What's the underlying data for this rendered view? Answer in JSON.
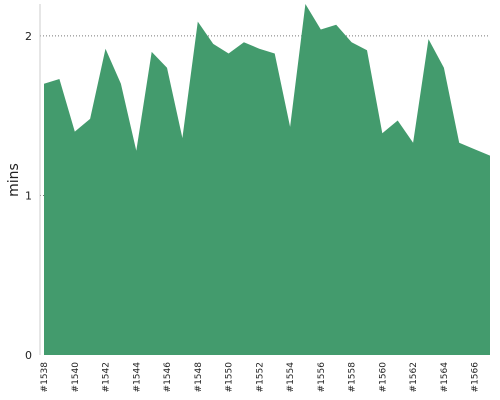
{
  "chart_data": {
    "type": "area",
    "title": "",
    "xlabel": "",
    "ylabel": "mins",
    "ylim": [
      0,
      2.2
    ],
    "yticks": [
      0,
      1,
      2
    ],
    "grid": "horizontal dashed at 1 and 2",
    "legend": "none",
    "color": "#439b6d",
    "x": [
      "#1538",
      "#1539",
      "#1540",
      "#1541",
      "#1542",
      "#1543",
      "#1544",
      "#1545",
      "#1546",
      "#1547",
      "#1548",
      "#1549",
      "#1550",
      "#1551",
      "#1552",
      "#1553",
      "#1554",
      "#1555",
      "#1556",
      "#1557",
      "#1558",
      "#1559",
      "#1560",
      "#1561",
      "#1562",
      "#1563",
      "#1564",
      "#1565",
      "#1566",
      "#1567"
    ],
    "x_tick_labels": [
      "#1538",
      "#1540",
      "#1542",
      "#1544",
      "#1546",
      "#1548",
      "#1550",
      "#1552",
      "#1554",
      "#1556",
      "#1558",
      "#1560",
      "#1562",
      "#1564",
      "#1566"
    ],
    "series": [
      {
        "values": [
          1.7,
          1.73,
          1.4,
          1.48,
          1.92,
          1.7,
          1.28,
          1.9,
          1.8,
          1.36,
          2.09,
          1.95,
          1.89,
          1.96,
          1.92,
          1.89,
          1.43,
          2.22,
          2.04,
          2.07,
          1.96,
          1.91,
          1.39,
          1.47,
          1.33,
          1.98,
          1.8,
          1.33,
          1.29,
          1.25
        ]
      }
    ]
  }
}
